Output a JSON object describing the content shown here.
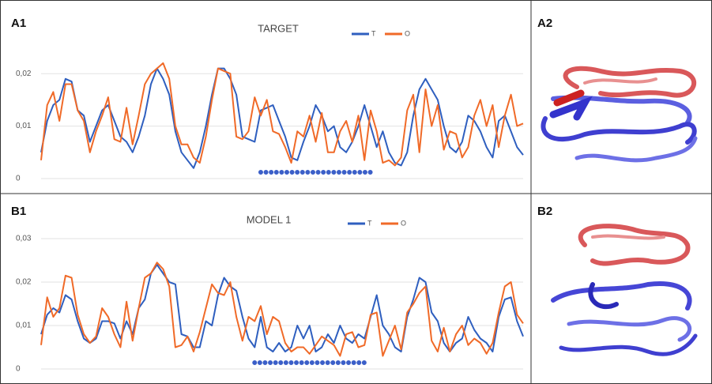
{
  "labels": [
    "A1",
    "A2",
    "B1",
    "B2"
  ],
  "chart_data": [
    {
      "type": "line",
      "title": "TARGET",
      "ylim": [
        0,
        0.025
      ],
      "yticks": [
        0,
        {
          "value": 0.01,
          "label": "0,01"
        },
        {
          "value": 0.02,
          "label": "0,02"
        }
      ],
      "grid": true,
      "highlight": [
        36,
        54
      ],
      "highlight_color": "#3b5fc8",
      "series": [
        {
          "name": "T",
          "color": "#2f5fbf",
          "values": [
            0.005,
            0.011,
            0.014,
            0.015,
            0.019,
            0.0185,
            0.013,
            0.012,
            0.007,
            0.01,
            0.013,
            0.014,
            0.011,
            0.008,
            0.007,
            0.005,
            0.008,
            0.012,
            0.018,
            0.021,
            0.019,
            0.016,
            0.009,
            0.005,
            0.0035,
            0.002,
            0.005,
            0.01,
            0.016,
            0.021,
            0.021,
            0.019,
            0.016,
            0.008,
            0.0075,
            0.007,
            0.013,
            0.0135,
            0.014,
            0.011,
            0.008,
            0.004,
            0.0035,
            0.007,
            0.01,
            0.014,
            0.012,
            0.009,
            0.01,
            0.006,
            0.005,
            0.007,
            0.01,
            0.014,
            0.01,
            0.006,
            0.009,
            0.005,
            0.003,
            0.0025,
            0.005,
            0.012,
            0.017,
            0.019,
            0.017,
            0.015,
            0.01,
            0.006,
            0.005,
            0.007,
            0.012,
            0.011,
            0.009,
            0.006,
            0.004,
            0.011,
            0.012,
            0.009,
            0.006,
            0.0045
          ]
        },
        {
          "name": "O",
          "color": "#f06a28",
          "values": [
            0.0035,
            0.014,
            0.0165,
            0.011,
            0.018,
            0.018,
            0.013,
            0.011,
            0.005,
            0.009,
            0.012,
            0.0155,
            0.0075,
            0.007,
            0.0135,
            0.0065,
            0.012,
            0.018,
            0.02,
            0.021,
            0.022,
            0.019,
            0.01,
            0.0065,
            0.0065,
            0.004,
            0.003,
            0.008,
            0.015,
            0.021,
            0.0205,
            0.02,
            0.008,
            0.0075,
            0.009,
            0.0155,
            0.012,
            0.015,
            0.009,
            0.0085,
            0.006,
            0.003,
            0.009,
            0.008,
            0.012,
            0.007,
            0.0125,
            0.005,
            0.005,
            0.009,
            0.011,
            0.007,
            0.012,
            0.0035,
            0.013,
            0.009,
            0.003,
            0.0035,
            0.0025,
            0.004,
            0.013,
            0.016,
            0.005,
            0.017,
            0.01,
            0.014,
            0.0055,
            0.009,
            0.0085,
            0.004,
            0.006,
            0.012,
            0.015,
            0.01,
            0.014,
            0.006,
            0.012,
            0.016,
            0.01,
            0.0105
          ]
        }
      ]
    },
    {
      "type": "line",
      "title": "MODEL 1",
      "ylim": [
        0,
        0.03
      ],
      "yticks": [
        0,
        {
          "value": 0.01,
          "label": "0,01"
        },
        {
          "value": 0.02,
          "label": "0,02"
        },
        {
          "value": 0.03,
          "label": "0,03"
        }
      ],
      "grid": true,
      "highlight": [
        35,
        53
      ],
      "highlight_color": "#3b5fc8",
      "series": [
        {
          "name": "T",
          "color": "#2f5fbf",
          "values": [
            0.008,
            0.0125,
            0.014,
            0.013,
            0.017,
            0.016,
            0.011,
            0.007,
            0.006,
            0.007,
            0.011,
            0.011,
            0.0105,
            0.007,
            0.011,
            0.008,
            0.014,
            0.016,
            0.022,
            0.024,
            0.022,
            0.02,
            0.0195,
            0.008,
            0.0075,
            0.005,
            0.005,
            0.011,
            0.01,
            0.017,
            0.021,
            0.019,
            0.018,
            0.012,
            0.007,
            0.005,
            0.012,
            0.005,
            0.004,
            0.006,
            0.004,
            0.005,
            0.01,
            0.007,
            0.01,
            0.004,
            0.005,
            0.008,
            0.006,
            0.01,
            0.007,
            0.006,
            0.008,
            0.007,
            0.012,
            0.017,
            0.01,
            0.008,
            0.005,
            0.004,
            0.012,
            0.016,
            0.021,
            0.02,
            0.013,
            0.011,
            0.006,
            0.004,
            0.006,
            0.007,
            0.012,
            0.009,
            0.007,
            0.006,
            0.004,
            0.012,
            0.016,
            0.0165,
            0.011,
            0.0075
          ]
        },
        {
          "name": "O",
          "color": "#f06a28",
          "values": [
            0.0055,
            0.0165,
            0.012,
            0.014,
            0.0215,
            0.021,
            0.0125,
            0.008,
            0.006,
            0.0075,
            0.014,
            0.012,
            0.008,
            0.005,
            0.0155,
            0.0065,
            0.014,
            0.021,
            0.022,
            0.0245,
            0.023,
            0.019,
            0.005,
            0.0055,
            0.0075,
            0.004,
            0.0085,
            0.014,
            0.0195,
            0.0175,
            0.017,
            0.02,
            0.012,
            0.0065,
            0.012,
            0.011,
            0.0145,
            0.008,
            0.012,
            0.011,
            0.006,
            0.004,
            0.005,
            0.005,
            0.0035,
            0.0055,
            0.0075,
            0.0065,
            0.0055,
            0.003,
            0.008,
            0.0085,
            0.005,
            0.0055,
            0.0125,
            0.013,
            0.003,
            0.0065,
            0.01,
            0.0045,
            0.013,
            0.015,
            0.0175,
            0.019,
            0.0065,
            0.004,
            0.0095,
            0.004,
            0.008,
            0.01,
            0.0055,
            0.007,
            0.006,
            0.0035,
            0.006,
            0.013,
            0.019,
            0.02,
            0.0125,
            0.0105
          ]
        }
      ]
    }
  ]
}
